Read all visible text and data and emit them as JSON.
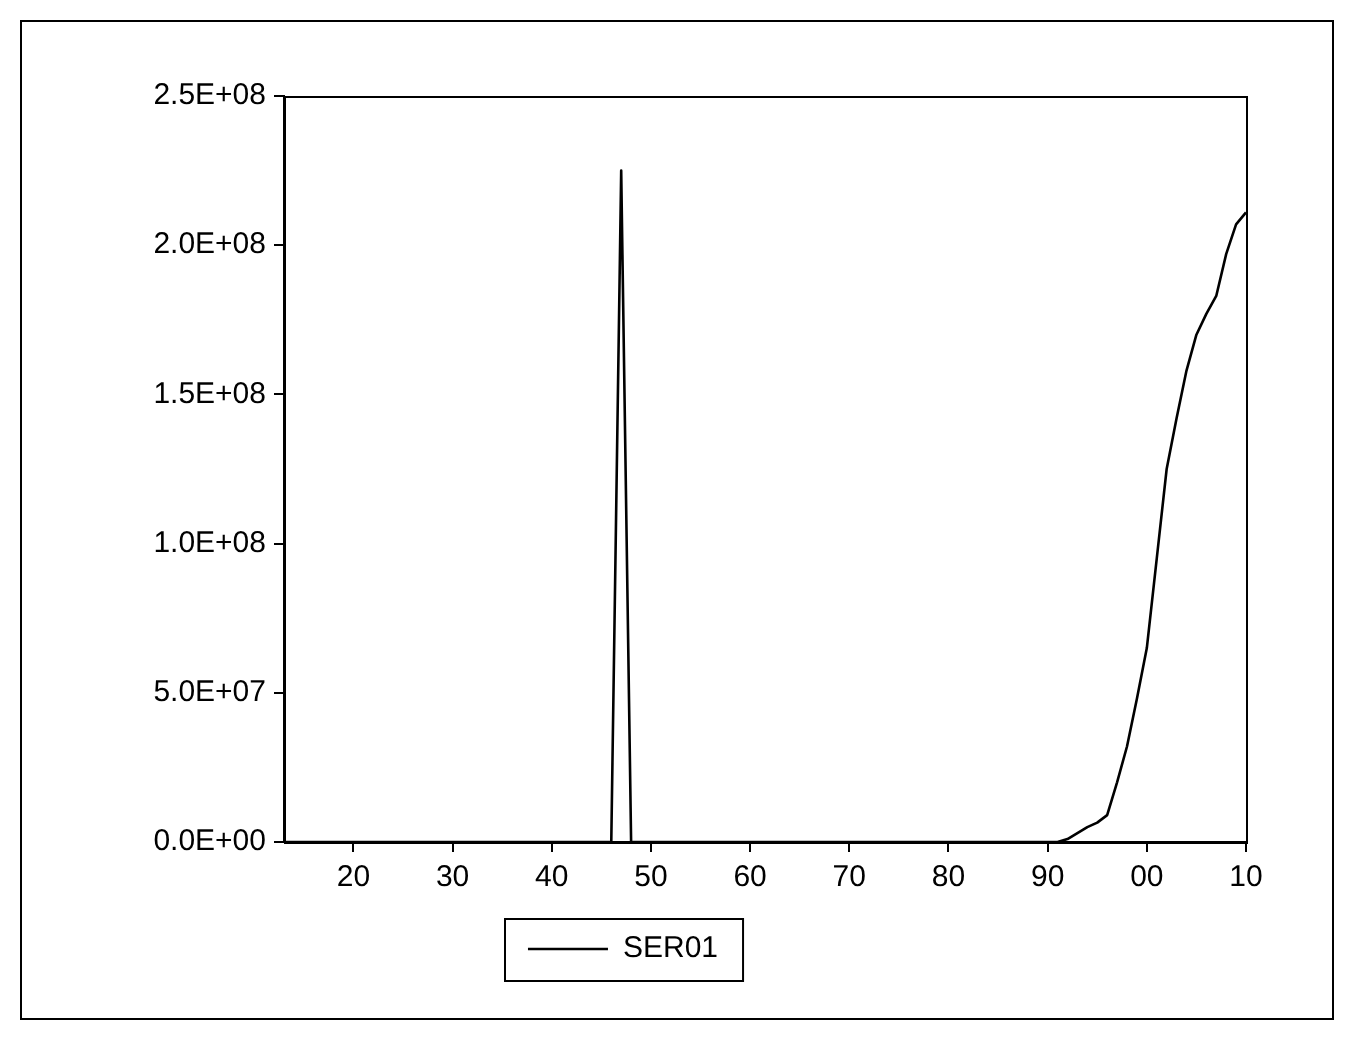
{
  "chart_data": {
    "type": "line",
    "x": [
      1913,
      1946,
      1947,
      1948,
      1991,
      1992,
      1993,
      1994,
      1995,
      1996,
      1997,
      1998,
      1999,
      2000,
      2001,
      2002,
      2003,
      2004,
      2005,
      2006,
      2007,
      2008,
      2009,
      2010
    ],
    "series": [
      {
        "name": "SER01",
        "color": "#000000",
        "values": [
          0,
          0,
          225000000,
          0,
          0,
          1000000,
          3000000,
          5000000,
          6500000,
          9000000,
          20000000,
          32000000,
          48000000,
          65000000,
          95000000,
          125000000,
          142000000,
          158000000,
          170000000,
          177000000,
          183000000,
          197000000,
          207000000,
          211000000
        ]
      }
    ],
    "xlim": [
      1913,
      2010
    ],
    "xticks": [
      {
        "value": 1920,
        "label": "20"
      },
      {
        "value": 1930,
        "label": "30"
      },
      {
        "value": 1940,
        "label": "40"
      },
      {
        "value": 1950,
        "label": "50"
      },
      {
        "value": 1960,
        "label": "60"
      },
      {
        "value": 1970,
        "label": "70"
      },
      {
        "value": 1980,
        "label": "80"
      },
      {
        "value": 1990,
        "label": "90"
      },
      {
        "value": 2000,
        "label": "00"
      },
      {
        "value": 2010,
        "label": "10"
      }
    ],
    "ylim": [
      0,
      250000000
    ],
    "yticks": [
      {
        "value": 0,
        "label": "0.0E+00"
      },
      {
        "value": 50000000,
        "label": "5.0E+07"
      },
      {
        "value": 100000000,
        "label": "1.0E+08"
      },
      {
        "value": 150000000,
        "label": "1.5E+08"
      },
      {
        "value": 200000000,
        "label": "2.0E+08"
      },
      {
        "value": 250000000,
        "label": "2.5E+08"
      }
    ],
    "grid": false,
    "legend": "bottom",
    "marker": "none",
    "line_style": "solid"
  }
}
